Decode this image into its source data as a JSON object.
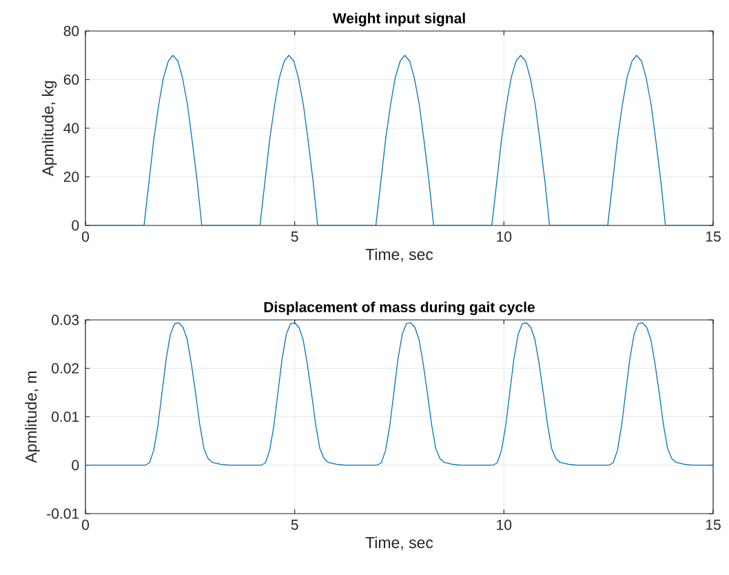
{
  "chart_data": [
    {
      "type": "line",
      "title": "Weight input signal",
      "xlabel": "Time, sec",
      "ylabel": "Apmlitude, kg",
      "xlim": [
        0,
        15
      ],
      "ylim": [
        0,
        80
      ],
      "xticks": [
        0,
        5,
        10,
        15
      ],
      "yticks": [
        0,
        20,
        40,
        60,
        80
      ],
      "grid": true,
      "series": [
        {
          "color": "#0072bd",
          "x": [
            0,
            1.4,
            1.52,
            1.63,
            1.75,
            1.86,
            1.98,
            2.09,
            2.21,
            2.32,
            2.44,
            2.55,
            2.67,
            2.78,
            4.17,
            4.29,
            4.4,
            4.52,
            4.63,
            4.75,
            4.86,
            4.98,
            5.09,
            5.21,
            5.32,
            5.44,
            5.55,
            6.94,
            7.06,
            7.17,
            7.29,
            7.4,
            7.52,
            7.63,
            7.75,
            7.86,
            7.98,
            8.09,
            8.21,
            8.32,
            9.71,
            9.83,
            9.94,
            10.06,
            10.17,
            10.29,
            10.4,
            10.52,
            10.63,
            10.75,
            10.86,
            10.98,
            11.09,
            12.48,
            12.6,
            12.71,
            12.83,
            12.94,
            13.06,
            13.17,
            13.29,
            13.4,
            13.52,
            13.63,
            13.75,
            13.86,
            15
          ],
          "values": [
            0,
            0,
            18.1,
            35,
            49.5,
            60.6,
            67.6,
            70,
            67.6,
            60.6,
            49.5,
            35,
            18.1,
            0,
            0,
            18.1,
            35,
            49.5,
            60.6,
            67.6,
            70,
            67.6,
            60.6,
            49.5,
            35,
            18.1,
            0,
            0,
            18.1,
            35,
            49.5,
            60.6,
            67.6,
            70,
            67.6,
            60.6,
            49.5,
            35,
            18.1,
            0,
            0,
            18.1,
            35,
            49.5,
            60.6,
            67.6,
            70,
            67.6,
            60.6,
            49.5,
            35,
            18.1,
            0,
            0,
            18.1,
            35,
            49.5,
            60.6,
            67.6,
            70,
            67.6,
            60.6,
            49.5,
            35,
            18.1,
            0,
            0
          ]
        }
      ]
    },
    {
      "type": "line",
      "title": "Displacement of mass during gait cycle",
      "xlabel": "Time, sec",
      "ylabel": "Apmlitude, m",
      "xlim": [
        0,
        15
      ],
      "ylim": [
        -0.01,
        0.03
      ],
      "xticks": [
        0,
        5,
        10,
        15
      ],
      "yticks": [
        -0.01,
        0,
        0.01,
        0.02,
        0.03
      ],
      "grid": true,
      "series": [
        {
          "color": "#0072bd",
          "x": [
            0,
            1.43,
            1.53,
            1.63,
            1.73,
            1.83,
            1.93,
            2.03,
            2.13,
            2.23,
            2.33,
            2.43,
            2.53,
            2.63,
            2.73,
            2.83,
            2.93,
            3.03,
            3.23,
            3.43,
            4.2,
            4.3,
            4.4,
            4.5,
            4.6,
            4.7,
            4.8,
            4.9,
            5.0,
            5.1,
            5.2,
            5.3,
            5.4,
            5.5,
            5.6,
            5.7,
            5.8,
            6.0,
            6.2,
            6.97,
            7.07,
            7.17,
            7.27,
            7.37,
            7.47,
            7.57,
            7.67,
            7.77,
            7.87,
            7.97,
            8.07,
            8.17,
            8.27,
            8.37,
            8.47,
            8.57,
            8.77,
            8.97,
            9.74,
            9.84,
            9.94,
            10.04,
            10.14,
            10.24,
            10.34,
            10.44,
            10.54,
            10.64,
            10.74,
            10.84,
            10.94,
            11.04,
            11.14,
            11.24,
            11.34,
            11.54,
            11.74,
            12.51,
            12.61,
            12.71,
            12.81,
            12.91,
            13.01,
            13.11,
            13.21,
            13.31,
            13.41,
            13.51,
            13.61,
            13.71,
            13.81,
            13.91,
            14.01,
            14.11,
            14.31,
            14.51,
            15
          ],
          "values": [
            0,
            0,
            0.0005,
            0.003,
            0.008,
            0.015,
            0.022,
            0.027,
            0.0292,
            0.0294,
            0.0285,
            0.026,
            0.021,
            0.015,
            0.0085,
            0.0035,
            0.0014,
            0.0006,
            0.0002,
            0,
            0,
            0.0005,
            0.003,
            0.008,
            0.015,
            0.022,
            0.027,
            0.0292,
            0.0294,
            0.0285,
            0.026,
            0.021,
            0.015,
            0.0085,
            0.0035,
            0.0014,
            0.0006,
            0.0002,
            0,
            0,
            0.0005,
            0.003,
            0.008,
            0.015,
            0.022,
            0.027,
            0.0292,
            0.0294,
            0.0285,
            0.026,
            0.021,
            0.015,
            0.0085,
            0.0035,
            0.0014,
            0.0006,
            0.0002,
            0,
            0,
            0.0005,
            0.003,
            0.008,
            0.015,
            0.022,
            0.027,
            0.0292,
            0.0294,
            0.0285,
            0.026,
            0.021,
            0.015,
            0.0085,
            0.0035,
            0.0014,
            0.0006,
            0.0002,
            0,
            0,
            0.0005,
            0.003,
            0.008,
            0.015,
            0.022,
            0.027,
            0.0292,
            0.0294,
            0.0285,
            0.026,
            0.021,
            0.015,
            0.0085,
            0.0035,
            0.0014,
            0.0006,
            0.0002,
            0,
            0
          ]
        }
      ]
    }
  ]
}
